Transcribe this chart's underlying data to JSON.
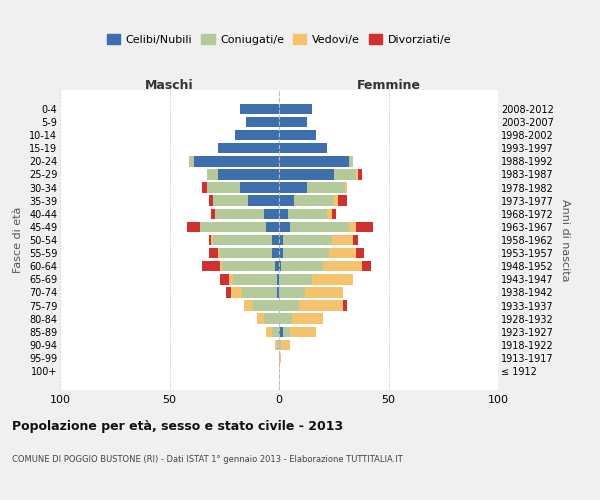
{
  "age_groups": [
    "100+",
    "95-99",
    "90-94",
    "85-89",
    "80-84",
    "75-79",
    "70-74",
    "65-69",
    "60-64",
    "55-59",
    "50-54",
    "45-49",
    "40-44",
    "35-39",
    "30-34",
    "25-29",
    "20-24",
    "15-19",
    "10-14",
    "5-9",
    "0-4"
  ],
  "birth_years": [
    "≤ 1912",
    "1913-1917",
    "1918-1922",
    "1923-1927",
    "1928-1932",
    "1933-1937",
    "1938-1942",
    "1943-1947",
    "1948-1952",
    "1953-1957",
    "1958-1962",
    "1963-1967",
    "1968-1972",
    "1973-1977",
    "1978-1982",
    "1983-1987",
    "1988-1992",
    "1993-1997",
    "1998-2002",
    "2003-2007",
    "2008-2012"
  ],
  "maschi": {
    "celibi": [
      0,
      0,
      0,
      0,
      0,
      0,
      1,
      1,
      2,
      3,
      3,
      6,
      7,
      14,
      18,
      28,
      39,
      28,
      20,
      15,
      18
    ],
    "coniugati": [
      0,
      0,
      1,
      3,
      7,
      12,
      16,
      20,
      24,
      24,
      27,
      30,
      22,
      16,
      15,
      5,
      2,
      0,
      0,
      0,
      0
    ],
    "vedovi": [
      0,
      0,
      1,
      3,
      3,
      4,
      5,
      2,
      1,
      1,
      1,
      0,
      0,
      0,
      0,
      0,
      0,
      0,
      0,
      0,
      0
    ],
    "divorziati": [
      0,
      0,
      0,
      0,
      0,
      0,
      2,
      4,
      8,
      4,
      1,
      6,
      2,
      2,
      2,
      0,
      0,
      0,
      0,
      0,
      0
    ]
  },
  "femmine": {
    "nubili": [
      0,
      0,
      0,
      2,
      0,
      0,
      0,
      0,
      1,
      2,
      2,
      5,
      4,
      7,
      13,
      25,
      32,
      22,
      17,
      13,
      15
    ],
    "coniugate": [
      0,
      0,
      1,
      3,
      6,
      9,
      12,
      15,
      19,
      21,
      22,
      27,
      18,
      18,
      17,
      10,
      2,
      0,
      0,
      0,
      0
    ],
    "vedove": [
      0,
      1,
      4,
      12,
      14,
      20,
      17,
      19,
      18,
      12,
      10,
      3,
      2,
      2,
      1,
      1,
      0,
      0,
      0,
      0,
      0
    ],
    "divorziate": [
      0,
      0,
      0,
      0,
      0,
      2,
      0,
      0,
      4,
      4,
      2,
      8,
      2,
      4,
      0,
      2,
      0,
      0,
      0,
      0,
      0
    ]
  },
  "colors": {
    "celibi": "#3d6fad",
    "coniugati": "#b5ca9a",
    "vedovi": "#f5c36e",
    "divorziati": "#d13030"
  },
  "xlim": 100,
  "title": "Popolazione per età, sesso e stato civile - 2013",
  "subtitle": "COMUNE DI POGGIO BUSTONE (RI) - Dati ISTAT 1° gennaio 2013 - Elaborazione TUTTITALIA.IT",
  "ylabel_left": "Fasce di età",
  "ylabel_right": "Anni di nascita",
  "xlabel_left": "Maschi",
  "xlabel_right": "Femmine",
  "legend_labels": [
    "Celibi/Nubili",
    "Coniugati/e",
    "Vedovi/e",
    "Divorziati/e"
  ],
  "bg_color": "#f0f0f0",
  "plot_bg": "#ffffff"
}
